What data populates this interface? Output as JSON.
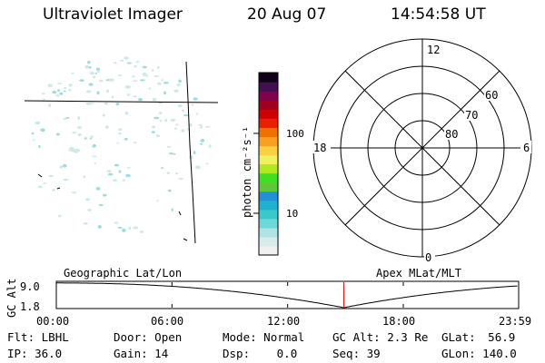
{
  "header": {
    "instrument": "Ultraviolet Imager",
    "date": "20 Aug 07",
    "time": "14:54:58 UT"
  },
  "colorbar": {
    "label": "photon cm⁻²s⁻¹",
    "ticks": [
      "100",
      "10"
    ],
    "colors": [
      "#f0f0f0",
      "#d8ecec",
      "#b0e4e4",
      "#6ed8d8",
      "#3cc8c8",
      "#20b0d0",
      "#2090d8",
      "#60c838",
      "#40e020",
      "#b0e820",
      "#f0f060",
      "#f8d040",
      "#f8a020",
      "#f07000",
      "#e82000",
      "#d00000",
      "#a00020",
      "#800050",
      "#401050",
      "#100018"
    ]
  },
  "polar_plot": {
    "lat_labels": [
      "60",
      "70",
      "80"
    ],
    "mlt_labels": {
      "top": "12",
      "bottom": "0",
      "left": "18",
      "right": "6"
    }
  },
  "altitude_plot": {
    "left_title": "Geographic Lat/Lon",
    "right_title": "Apex MLat/MLT",
    "ylabel": "GC Alt",
    "y_ticks": [
      "9.0",
      "1.8"
    ],
    "x_ticks": [
      "00:00",
      "06:00",
      "12:00",
      "18:00",
      "23:59"
    ],
    "current_time_marker": "14:54:58",
    "marker_color": "#e00000"
  },
  "info": {
    "flt": {
      "label": "Flt:",
      "value": "LBHL"
    },
    "ip": {
      "label": "IP:",
      "value": "36.0"
    },
    "door": {
      "label": "Door:",
      "value": "Open"
    },
    "gain": {
      "label": "Gain:",
      "value": "14"
    },
    "mode": {
      "label": "Mode:",
      "value": "Normal"
    },
    "dsp": {
      "label": "Dsp:",
      "value": "0.0"
    },
    "gcalt": {
      "label": "GC Alt:",
      "value": "2.3 Re"
    },
    "seq": {
      "label": "Seq:",
      "value": "39"
    },
    "glat": {
      "label": "GLat:",
      "value": "56.9"
    },
    "glon": {
      "label": "GLon:",
      "value": "140.0"
    }
  }
}
